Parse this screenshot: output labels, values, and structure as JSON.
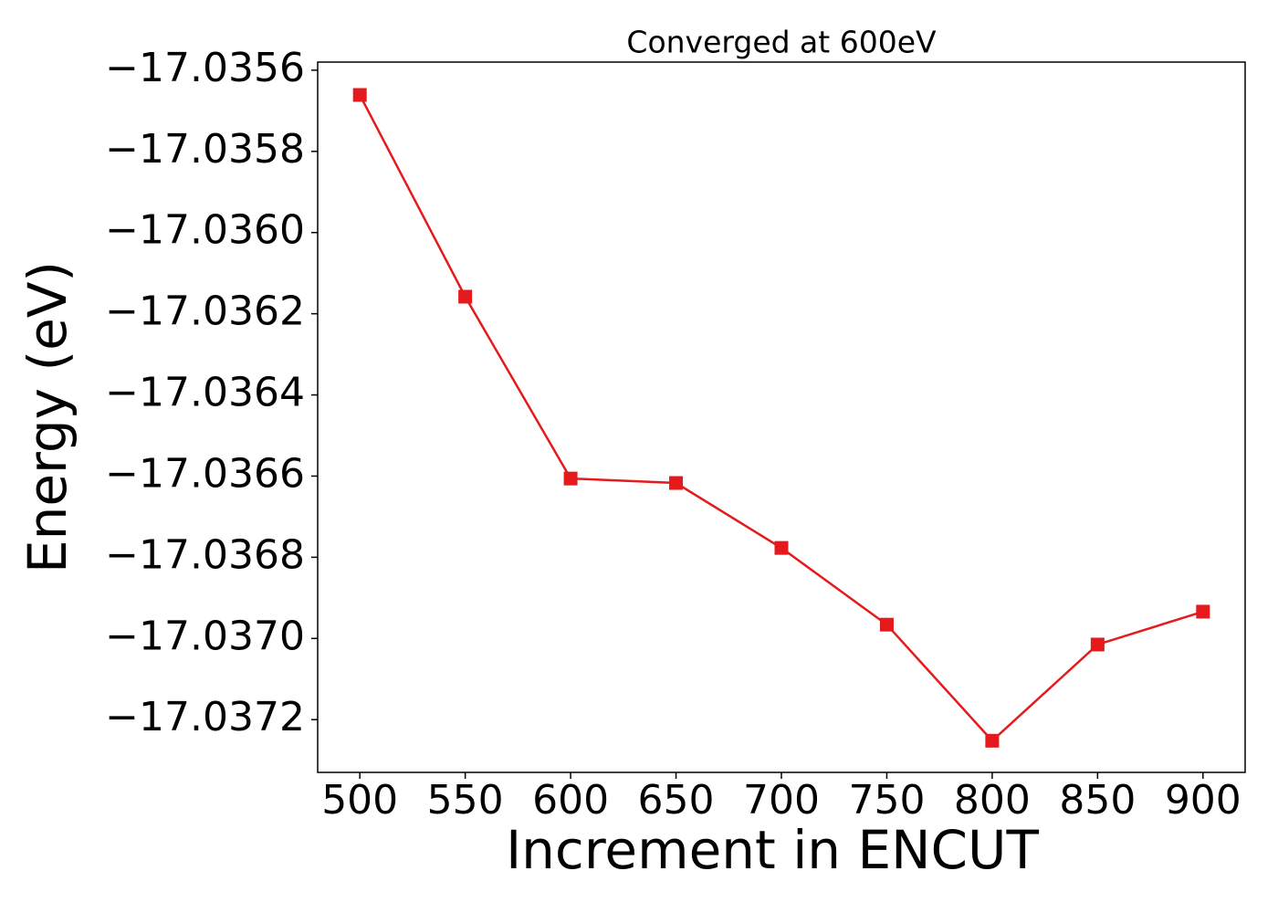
{
  "chart_data": {
    "type": "line",
    "title": "Converged at 600eV",
    "x_label": "Increment in ENCUT",
    "y_label": "Energy (eV)",
    "x": [
      500,
      550,
      600,
      650,
      700,
      750,
      800,
      850,
      900
    ],
    "series": [
      {
        "name": "Energy",
        "color": "#e41a1c",
        "values": [
          -17.035661,
          -17.036158,
          -17.036606,
          -17.036617,
          -17.036777,
          -17.036966,
          -17.037252,
          -17.037015,
          -17.036934
        ]
      }
    ],
    "xlim": [
      480,
      920
    ],
    "xticks": [
      500,
      550,
      600,
      650,
      700,
      750,
      800,
      850,
      900
    ],
    "ylim": [
      -17.03733,
      -17.03558
    ],
    "yticks": [
      {
        "value": -17.0356,
        "label": "−17.0356"
      },
      {
        "value": -17.0358,
        "label": "−17.0358"
      },
      {
        "value": -17.036,
        "label": "−17.0360"
      },
      {
        "value": -17.0362,
        "label": "−17.0362"
      },
      {
        "value": -17.0364,
        "label": "−17.0364"
      },
      {
        "value": -17.0366,
        "label": "−17.0366"
      },
      {
        "value": -17.0368,
        "label": "−17.0368"
      },
      {
        "value": -17.037,
        "label": "−17.0370"
      },
      {
        "value": -17.0372,
        "label": "−17.0372"
      }
    ],
    "grid": false,
    "marker": "square"
  }
}
